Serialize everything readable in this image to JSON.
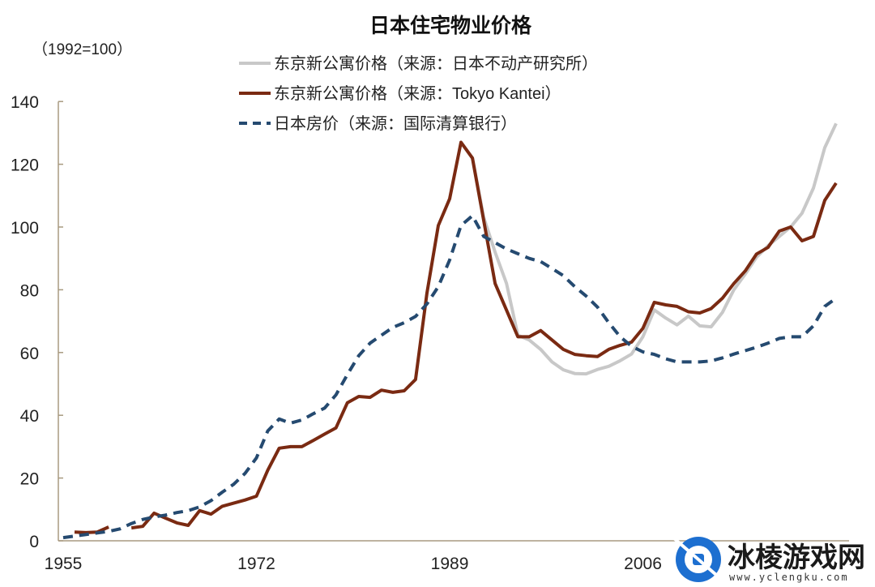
{
  "chart_data": {
    "type": "line",
    "title": "日本住宅物业价格",
    "unit_label": "（1992=100）",
    "xlabel": "",
    "ylabel": "",
    "xlim": [
      1955,
      2023
    ],
    "ylim": [
      0,
      140
    ],
    "x_ticks": [
      1955,
      1972,
      1989,
      2006
    ],
    "y_ticks": [
      0,
      20,
      40,
      60,
      80,
      100,
      120,
      140
    ],
    "grid": false,
    "legend_position": "top-center",
    "series": [
      {
        "name": "东京新公寓价格（来源：日本不动产研究所）",
        "color": "#c8c8c8",
        "style": "solid",
        "x": [
          1990,
          1991,
          1992,
          1993,
          1994,
          1995,
          1996,
          1997,
          1998,
          1999,
          2000,
          2001,
          2002,
          2003,
          2004,
          2005,
          2006,
          2007,
          2008,
          2009,
          2010,
          2011,
          2012,
          2013,
          2014,
          2015,
          2016,
          2017,
          2018,
          2019,
          2020,
          2021,
          2022,
          2023
        ],
        "y": [
          127,
          122,
          103,
          92,
          82,
          65.5,
          64,
          61,
          57,
          54.5,
          53.3,
          53.2,
          54.6,
          55.6,
          57.4,
          59.5,
          65,
          73.6,
          71,
          68.8,
          71.6,
          68.5,
          68.2,
          72.8,
          80,
          85,
          90.4,
          94,
          97,
          100,
          104.4,
          112.4,
          125.3,
          133
        ]
      },
      {
        "name": "东京新公寓价格（来源：Tokyo Kantei）",
        "color": "#7a2a12",
        "style": "solid",
        "x": [
          1956,
          1957,
          1958,
          1959,
          1960,
          1961,
          1962,
          1963,
          1964,
          1965,
          1966,
          1967,
          1968,
          1969,
          1970,
          1971,
          1972,
          1973,
          1974,
          1975,
          1976,
          1977,
          1978,
          1979,
          1980,
          1981,
          1982,
          1983,
          1984,
          1985,
          1986,
          1987,
          1988,
          1989,
          1990,
          1991,
          1992,
          1993,
          1994,
          1995,
          1996,
          1997,
          1998,
          1999,
          2000,
          2001,
          2002,
          2003,
          2004,
          2005,
          2006,
          2007,
          2008,
          2009,
          2010,
          2011,
          2012,
          2013,
          2014,
          2015,
          2016,
          2017,
          2018,
          2019,
          2020,
          2021,
          2022,
          2023
        ],
        "y": [
          2.8,
          2.6,
          2.8,
          4.4,
          null,
          4.1,
          4.6,
          8.8,
          7.2,
          5.7,
          4.9,
          9.6,
          8.5,
          11,
          12,
          13,
          14.2,
          22.5,
          29.5,
          30,
          30,
          32,
          34,
          36,
          44,
          46,
          45.7,
          48,
          47.3,
          47.8,
          51.4,
          79,
          100.5,
          109,
          127,
          122,
          102,
          82,
          73.5,
          65,
          65,
          67,
          64,
          61,
          59.4,
          59,
          58.7,
          61,
          62.3,
          63.3,
          67.7,
          76,
          75.2,
          74.7,
          73,
          72.6,
          74,
          77.3,
          82,
          86,
          91.4,
          93.5,
          98.7,
          100,
          95.6,
          97,
          108.5,
          114
        ]
      },
      {
        "name": "日本房价（来源：国际清算银行）",
        "color": "#254a70",
        "style": "dashed",
        "x": [
          1955,
          1956,
          1957,
          1958,
          1959,
          1960,
          1961,
          1962,
          1963,
          1964,
          1965,
          1966,
          1967,
          1968,
          1969,
          1970,
          1971,
          1972,
          1973,
          1974,
          1975,
          1976,
          1977,
          1978,
          1979,
          1980,
          1981,
          1982,
          1983,
          1984,
          1985,
          1986,
          1987,
          1988,
          1989,
          1990,
          1991,
          1992,
          1993,
          1994,
          1995,
          1996,
          1997,
          1998,
          1999,
          2000,
          2001,
          2002,
          2003,
          2004,
          2005,
          2006,
          2007,
          2008,
          2009,
          2010,
          2011,
          2012,
          2013,
          2014,
          2015,
          2016,
          2017,
          2018,
          2019,
          2020,
          2021,
          2022,
          2023
        ],
        "y": [
          1,
          1.5,
          2,
          2.5,
          3,
          3.8,
          5.5,
          6.8,
          7.6,
          8.2,
          9,
          9.6,
          10.8,
          12.8,
          15.5,
          18,
          21.5,
          26.4,
          35,
          38.8,
          37.5,
          38.5,
          40.5,
          42.3,
          46.5,
          53,
          59,
          63,
          65.5,
          68,
          69.5,
          71.5,
          75.5,
          81,
          89.5,
          100.5,
          103.6,
          97,
          95,
          93,
          91.5,
          90,
          89,
          86.8,
          84.5,
          81,
          78,
          74.5,
          69.5,
          65,
          62,
          60.2,
          59.4,
          58,
          57,
          57,
          57,
          57.3,
          58.3,
          59.5,
          60.6,
          61.7,
          63,
          64.5,
          65,
          65,
          68.5,
          74.7,
          77.3
        ]
      }
    ]
  },
  "watermark": {
    "name": "冰棱游戏网",
    "url": "www.yclengku.com"
  }
}
